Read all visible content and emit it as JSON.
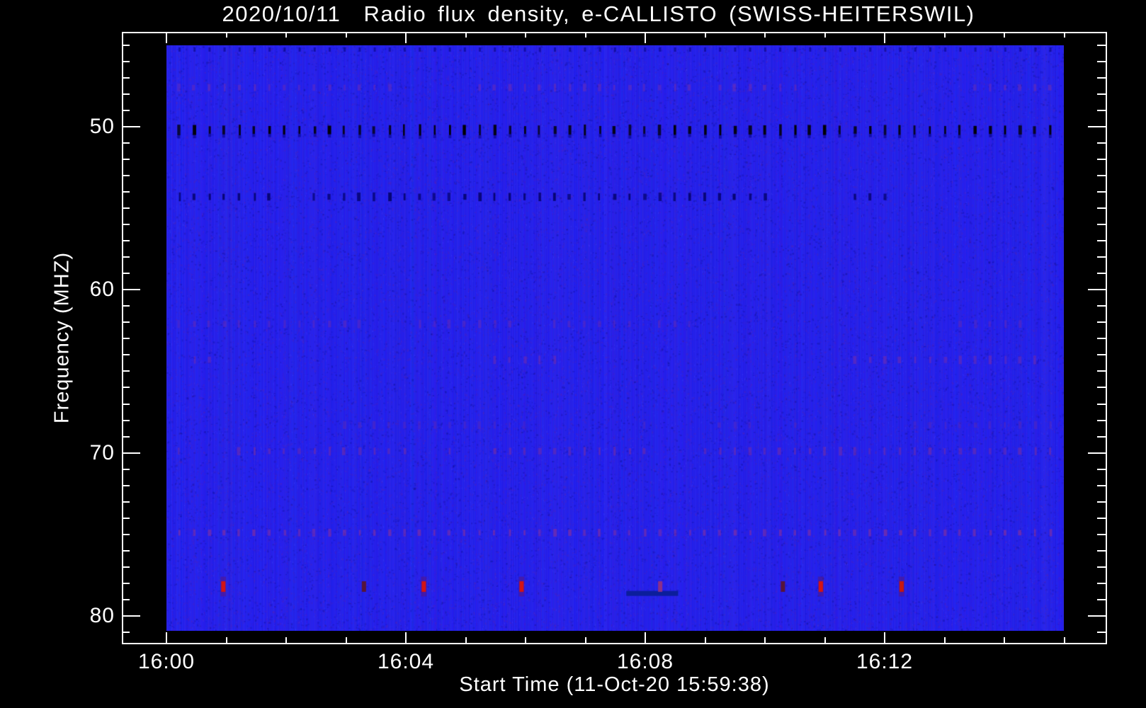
{
  "page": {
    "background": "#000000",
    "text_color": "#ffffff"
  },
  "title": "2020/10/11  Radio flux density, e-CALLISTO (SWISS-HEITERSWIL)",
  "x_axis": {
    "label": "Start Time (11-Oct-20 15:59:38)",
    "major_tick_labels": [
      "16:00",
      "16:04",
      "16:08",
      "16:12"
    ],
    "minor_tick_interval_min": 1,
    "major_tick_interval_min": 4
  },
  "y_axis": {
    "label": "Frequency (MHZ)",
    "major_tick_labels": [
      "50",
      "60",
      "70",
      "80"
    ],
    "minor_tick_interval_mhz": 1,
    "major_tick_interval_mhz": 10
  },
  "chart_data": {
    "type": "heatmap",
    "title": "2020/10/11  Radio flux density, e-CALLISTO (SWISS-HEITERSWIL)",
    "xlabel": "Start Time (11-Oct-20 15:59:38)",
    "ylabel": "Frequency (MHZ)",
    "x_tick_times": [
      "16:00",
      "16:04",
      "16:08",
      "16:12"
    ],
    "x_range_time": [
      "15:59:38",
      "16:15:45"
    ],
    "ylim_mhz": [
      44.2,
      81.7
    ],
    "y_axis_inverted": true,
    "grid": false,
    "legend": "none",
    "background_hex": "#2521ea",
    "dash_period_s": 15,
    "interference_lines": [
      {
        "freq_mhz": 47.6,
        "color": "#7c30a8",
        "opacity": 0.5,
        "dash_h": 9,
        "presence": 0.75,
        "note": "faint purple dash row"
      },
      {
        "freq_mhz": 50.2,
        "color": "#000000",
        "opacity": 1.0,
        "dash_h": 13,
        "presence": 1.0,
        "note": "strong black dash row every 15 s"
      },
      {
        "freq_mhz": 54.3,
        "color": "#000060",
        "opacity": 0.85,
        "dash_h": 10,
        "presence": 0.6,
        "note": "dark navy dash row"
      },
      {
        "freq_mhz": 62.1,
        "color": "#6c2bb0",
        "opacity": 0.5,
        "dash_h": 10,
        "presence": 0.6,
        "note": "purple dash row"
      },
      {
        "freq_mhz": 64.3,
        "color": "#7a2da8",
        "opacity": 0.55,
        "dash_h": 10,
        "presence": 0.6,
        "note": "purple dash row"
      },
      {
        "freq_mhz": 68.3,
        "color": "#6a2ba8",
        "opacity": 0.4,
        "dash_h": 9,
        "presence": 0.5,
        "note": "faint purple dash row"
      },
      {
        "freq_mhz": 69.9,
        "color": "#7a2da0",
        "opacity": 0.6,
        "dash_h": 10,
        "presence": 0.7,
        "note": "purple dash row"
      },
      {
        "freq_mhz": 74.9,
        "color": "#8a309a",
        "opacity": 0.65,
        "dash_h": 9,
        "presence": 0.82,
        "note": "dense purple dash row"
      }
    ],
    "bursts_78_mhz": [
      {
        "time": "16:00:57",
        "intensity": "bright",
        "color": "#d41414"
      },
      {
        "time": "16:03:18",
        "intensity": "dim",
        "color": "#571539"
      },
      {
        "time": "16:04:18",
        "intensity": "bright",
        "color": "#d41414"
      },
      {
        "time": "16:05:56",
        "intensity": "bright",
        "color": "#d41414"
      },
      {
        "time": "16:08:15",
        "intensity": "dim-magenta",
        "color": "#8c2f86"
      },
      {
        "time": "16:10:18",
        "intensity": "dim",
        "color": "#571539"
      },
      {
        "time": "16:10:56",
        "intensity": "bright",
        "color": "#d41414"
      },
      {
        "time": "16:12:17",
        "intensity": "bright",
        "color": "#c8180f"
      }
    ],
    "low_band_streak": {
      "time_start": "16:07:41",
      "time_end": "16:08:33",
      "freq_mhz": 78.6,
      "color": "#0b1e9a"
    }
  }
}
